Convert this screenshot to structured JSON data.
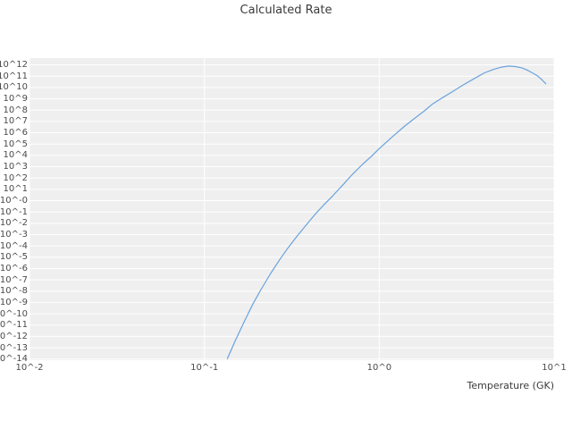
{
  "title": "Calculated Rate",
  "colors": {
    "line": "#6aa2dc",
    "plot_bg": "#efefef",
    "grid": "#ffffff",
    "title_text": "#3b3b3b",
    "tick_text": "#4a4a4a"
  },
  "chart_data": {
    "type": "line",
    "title": "Calculated Rate",
    "xlabel": "Temperature (GK)",
    "ylabel": "",
    "x_scale": "log",
    "y_scale": "log",
    "xlim_log": [
      -2,
      1
    ],
    "ylim_log": [
      -14.1,
      12.6
    ],
    "grid": "on",
    "legend": "none",
    "x_tick_labels": [
      "10^-2",
      "10^-1",
      "10^0",
      "10^1"
    ],
    "x_tick_log": [
      -2,
      -1,
      0,
      1
    ],
    "y_tick_labels": [
      "10^12",
      "10^11",
      "10^10",
      "10^9",
      "10^8",
      "10^7",
      "10^6",
      "10^5",
      "10^4",
      "10^3",
      "10^2",
      "10^1",
      "10^-0",
      "10^-1",
      "10^-2",
      "10^-3",
      "10^-4",
      "10^-5",
      "10^-6",
      "10^-7",
      "10^-8",
      "10^-9",
      "10^-10",
      "10^-11",
      "10^-12",
      "10^-13",
      "10^-14"
    ],
    "y_tick_log": [
      12,
      11,
      10,
      9,
      8,
      7,
      6,
      5,
      4,
      3,
      2,
      1,
      0,
      -1,
      -2,
      -3,
      -4,
      -5,
      -6,
      -7,
      -8,
      -9,
      -10,
      -11,
      -12,
      -13,
      -14
    ],
    "series": [
      {
        "name": "calculated-rate",
        "x_GK": [
          0.135,
          0.15,
          0.17,
          0.19,
          0.21,
          0.24,
          0.27,
          0.3,
          0.34,
          0.38,
          0.43,
          0.48,
          0.54,
          0.62,
          0.7,
          0.8,
          0.9,
          1.0,
          1.2,
          1.4,
          1.6,
          1.8,
          2.0,
          2.3,
          2.6,
          3.0,
          3.5,
          4.0,
          4.5,
          5.0,
          5.5,
          6.0,
          6.5,
          7.0,
          7.5,
          8.0,
          8.5,
          9.0
        ],
        "log10_rate": [
          -14,
          -12.4,
          -10.6,
          -9.1,
          -7.9,
          -6.4,
          -5.2,
          -4.2,
          -3.1,
          -2.2,
          -1.2,
          -0.4,
          0.4,
          1.4,
          2.3,
          3.2,
          3.9,
          4.6,
          5.7,
          6.6,
          7.3,
          7.9,
          8.5,
          9.1,
          9.6,
          10.2,
          10.8,
          11.3,
          11.6,
          11.8,
          11.9,
          11.85,
          11.75,
          11.55,
          11.3,
          11.05,
          10.7,
          10.3
        ]
      }
    ]
  }
}
